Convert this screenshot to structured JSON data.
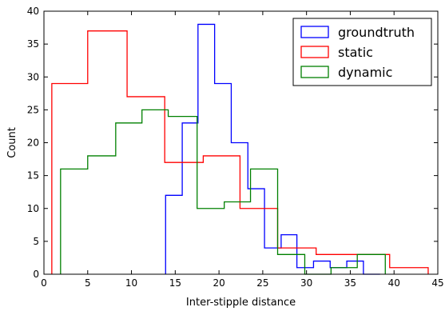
{
  "chart_data": {
    "type": "histogram",
    "xlabel": "Inter-stipple distance",
    "ylabel": "Count",
    "xlim": [
      0,
      45
    ],
    "ylim": [
      0,
      40
    ],
    "xticks": [
      0,
      5,
      10,
      15,
      20,
      25,
      30,
      35,
      40,
      45
    ],
    "yticks": [
      0,
      5,
      10,
      15,
      20,
      25,
      30,
      35,
      40
    ],
    "xtick_labels": [
      "0",
      "5",
      "10",
      "15",
      "20",
      "25",
      "30",
      "35",
      "40",
      "45"
    ],
    "ytick_labels": [
      "0",
      "5",
      "10",
      "15",
      "20",
      "25",
      "30",
      "35",
      "40"
    ],
    "legend_position": "top-right",
    "series": [
      {
        "name": "groundtruth",
        "color": "#0000ff",
        "bin_edges": [
          13.9,
          15.8,
          17.6,
          19.5,
          21.4,
          23.3,
          25.2,
          27.1,
          28.9,
          30.8,
          32.7,
          34.6,
          36.5,
          38.4
        ],
        "counts": [
          12,
          23,
          38,
          29,
          20,
          13,
          4,
          6,
          1,
          2,
          1,
          2,
          0
        ]
      },
      {
        "name": "static",
        "color": "#ff0000",
        "bin_edges": [
          0.9,
          5.0,
          9.5,
          13.8,
          18.2,
          22.4,
          26.7,
          31.1,
          35.3,
          39.5,
          43.9
        ],
        "counts": [
          29,
          37,
          27,
          17,
          18,
          10,
          4,
          3,
          3,
          1
        ]
      },
      {
        "name": "dynamic",
        "color": "#008000",
        "bin_edges": [
          1.9,
          5.0,
          8.2,
          11.2,
          14.2,
          17.5,
          20.6,
          23.6,
          26.7,
          29.8,
          32.8,
          35.8,
          39.0
        ],
        "counts": [
          16,
          18,
          23,
          25,
          24,
          10,
          11,
          16,
          3,
          0,
          1,
          3
        ]
      }
    ]
  }
}
